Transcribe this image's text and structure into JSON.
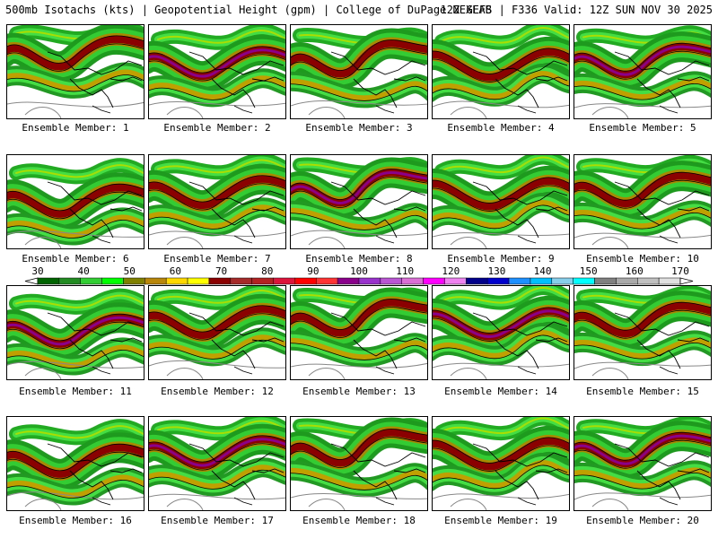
{
  "header": {
    "left_title": "500mb Isotachs (kts) | Geopotential Height (gpm) | College of DuPage NEXLAB",
    "right_title": "12Z GEFS | F336 Valid: 12Z SUN NOV 30 2025"
  },
  "members": [
    {
      "label": "Ensemble Member: 1"
    },
    {
      "label": "Ensemble Member: 2"
    },
    {
      "label": "Ensemble Member: 3"
    },
    {
      "label": "Ensemble Member: 4"
    },
    {
      "label": "Ensemble Member: 5"
    },
    {
      "label": "Ensemble Member: 6"
    },
    {
      "label": "Ensemble Member: 7"
    },
    {
      "label": "Ensemble Member: 8"
    },
    {
      "label": "Ensemble Member: 9"
    },
    {
      "label": "Ensemble Member: 10"
    },
    {
      "label": "Ensemble Member: 11"
    },
    {
      "label": "Ensemble Member: 12"
    },
    {
      "label": "Ensemble Member: 13"
    },
    {
      "label": "Ensemble Member: 14"
    },
    {
      "label": "Ensemble Member: 15"
    },
    {
      "label": "Ensemble Member: 16"
    },
    {
      "label": "Ensemble Member: 17"
    },
    {
      "label": "Ensemble Member: 18"
    },
    {
      "label": "Ensemble Member: 19"
    },
    {
      "label": "Ensemble Member: 20"
    }
  ],
  "colorbar": {
    "labels": [
      "30",
      "40",
      "50",
      "60",
      "70",
      "80",
      "90",
      "100",
      "110",
      "120",
      "130",
      "140",
      "150",
      "160",
      "170"
    ],
    "colors": [
      "#006400",
      "#228b22",
      "#32cd32",
      "#00ff00",
      "#808000",
      "#b8860b",
      "#ffd700",
      "#ffff00",
      "#8b0000",
      "#a52a2a",
      "#b22222",
      "#dc143c",
      "#ff0000",
      "#ff3333",
      "#8b008b",
      "#9932cc",
      "#ba55d3",
      "#da70d6",
      "#ff00ff",
      "#ee82ee",
      "#00008b",
      "#0000cd",
      "#1e90ff",
      "#00bfff",
      "#87ceeb",
      "#00ffff",
      "#808080",
      "#a9a9a9",
      "#c0c0c0",
      "#e0e0e0"
    ]
  }
}
